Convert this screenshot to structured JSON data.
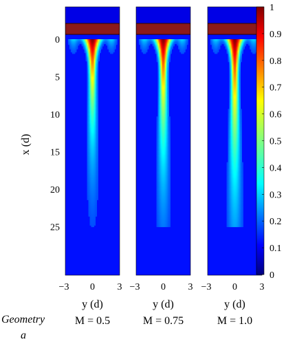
{
  "chart_data": {
    "type": "heatmap",
    "ylabel": "x (d)",
    "xlabel": "y (d)",
    "x_ticks": [
      -3,
      0,
      3
    ],
    "y_ticks": [
      0,
      5,
      10,
      15,
      20,
      25
    ],
    "xlim": [
      -3,
      3
    ],
    "ylim": [
      25,
      -2
    ],
    "colorbar": {
      "ticks": [
        0,
        0.1,
        0.2,
        0.3,
        0.4,
        0.5,
        0.6,
        0.7,
        0.8,
        0.9,
        1
      ],
      "range": [
        0,
        1
      ],
      "colormap": "jet"
    },
    "row_label": "Geometry",
    "row_sublabel": "a",
    "panels": [
      {
        "label": "M = 0.5",
        "M": 0.5
      },
      {
        "label": "M = 0.75",
        "M": 0.75
      },
      {
        "label": "M = 1.0",
        "M": 1.0
      }
    ]
  }
}
